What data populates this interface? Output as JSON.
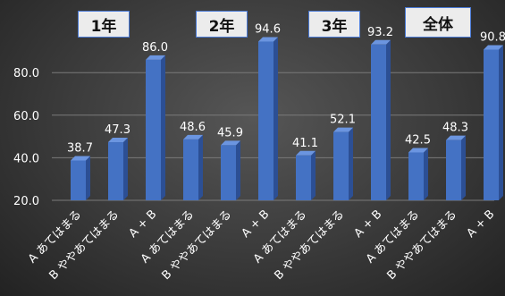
{
  "chart_data": {
    "type": "bar",
    "title": "",
    "xlabel": "",
    "ylabel": "",
    "ylim": [
      20,
      95
    ],
    "yticks": [
      20,
      40,
      60,
      80
    ],
    "ytick_labels": [
      "20.0",
      "40.0",
      "60.0",
      "80.0"
    ],
    "grid": true,
    "groups": [
      "1年",
      "2年",
      "3年",
      "全体"
    ],
    "categories": [
      "A あてはまる",
      "B ややあてはまる",
      "A + B",
      "A あてはまる",
      "B ややあてはまる",
      "A + B",
      "A あてはまる",
      "B ややあてはまる",
      "A + B",
      "A あてはまる",
      "B ややあてはまる",
      "A + B"
    ],
    "values": [
      38.7,
      47.3,
      86.0,
      48.6,
      45.9,
      94.6,
      41.1,
      52.1,
      93.2,
      42.5,
      48.3,
      90.8
    ],
    "value_labels": [
      "38.7",
      "47.3",
      "86.0",
      "48.6",
      "45.9",
      "94.6",
      "41.1",
      "52.1",
      "93.2",
      "42.5",
      "48.3",
      "90.8"
    ],
    "colors": {
      "bar": "#4472c4",
      "bar_side": "#2c4f94",
      "bar_top": "#6b95e0",
      "text": "#ffffff",
      "grid": "#7a7a7a",
      "group_box_border": "#4a7ad6",
      "group_box_fill": "#ececec"
    }
  }
}
